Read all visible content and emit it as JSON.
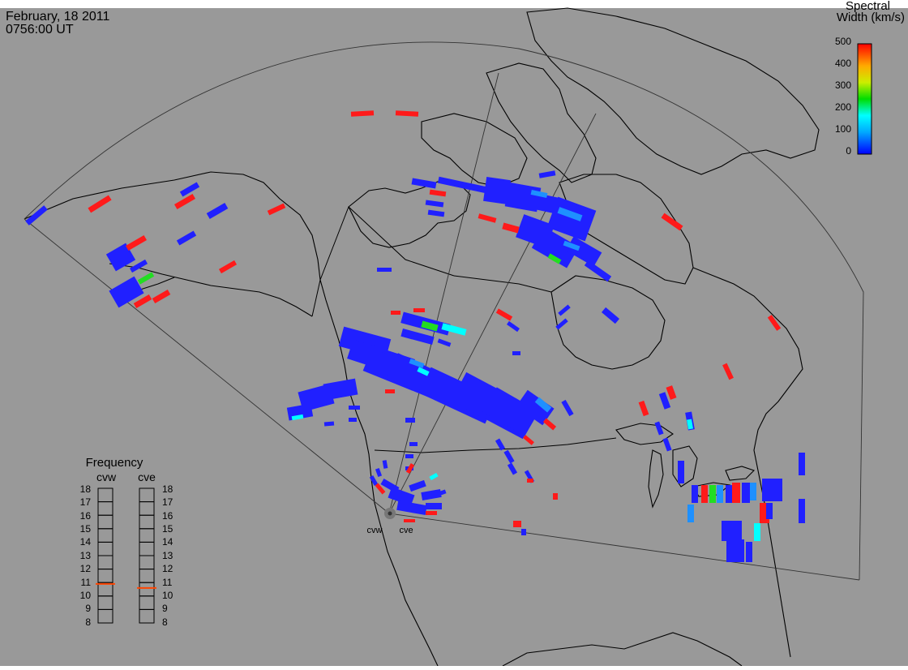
{
  "header": {
    "date": "February, 18 2011",
    "time": "0756:00 UT"
  },
  "colorbar": {
    "title_line1": "Spectral",
    "title_line2": "Width (km/s)",
    "ticks": [
      "500",
      "400",
      "300",
      "200",
      "100",
      "0"
    ],
    "min": 0,
    "max": 500
  },
  "radars": {
    "west_code": "cvw",
    "east_code": "cve"
  },
  "frequency_panel": {
    "title": "Frequency",
    "ticks": [
      "18",
      "17",
      "16",
      "15",
      "14",
      "13",
      "12",
      "11",
      "10",
      "9",
      "8"
    ],
    "min": 8,
    "max": 18,
    "west_value_mhz": 10.9,
    "east_value_mhz": 10.6
  },
  "colors": {
    "background": "#999999",
    "outline": "#000000",
    "marker": "#ff4500",
    "low": "#2020ff",
    "mid_low": "#1e90ff",
    "mid": "#00ffff",
    "mid_high": "#22dd22",
    "high": "#ff1a1a"
  }
}
